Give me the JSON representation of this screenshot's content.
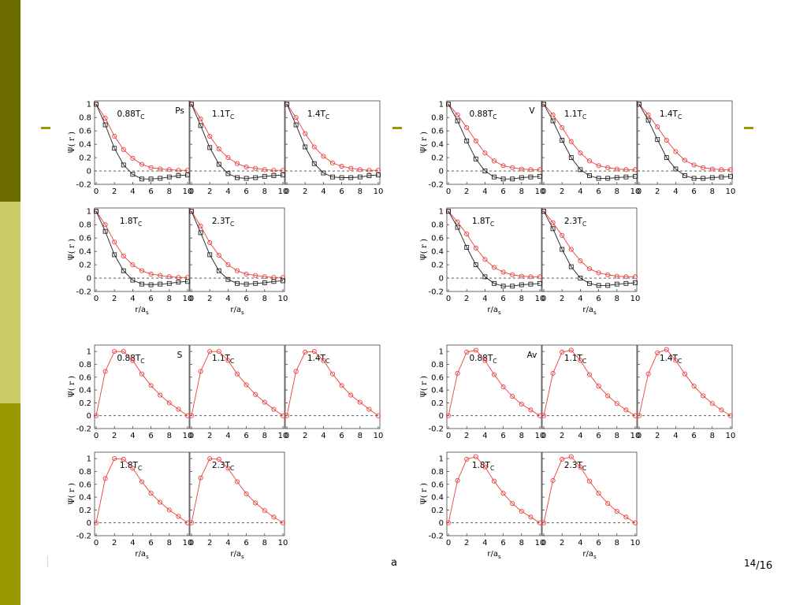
{
  "slide": {
    "colors": {
      "band": [
        "#6b6b00",
        "#cccc66",
        "#999900"
      ],
      "accent": "#999900",
      "red": "#e8413c",
      "black": "#222222"
    },
    "footer_fragment": "a",
    "page_current": "14",
    "page_total": "/16"
  },
  "chart_data": [
    {
      "type": "line",
      "title": "",
      "group": "top-left",
      "channel": "Ps",
      "xlabel": "r/a",
      "xlabel_sub": "s",
      "ylabel": "Ψ( r )",
      "xlim": [
        0,
        10
      ],
      "ylim": [
        -0.2,
        1.05
      ],
      "yticks": [
        -0.2,
        0,
        0.2,
        0.4,
        0.6,
        0.8,
        1
      ],
      "xticks": [
        0,
        2,
        4,
        6,
        8,
        10
      ],
      "dashed_zero": true,
      "panels": [
        {
          "label": "0.88T",
          "sub": "C",
          "x": [
            0,
            1,
            2,
            3,
            4,
            5,
            6,
            7,
            8,
            9,
            10
          ],
          "series": [
            {
              "color": "#e8413c",
              "marker": "circle",
              "values": [
                1.0,
                0.79,
                0.52,
                0.32,
                0.19,
                0.1,
                0.05,
                0.03,
                0.02,
                0.01,
                0.01
              ]
            },
            {
              "color": "#222222",
              "marker": "square",
              "values": [
                1.0,
                0.69,
                0.34,
                0.09,
                -0.05,
                -0.12,
                -0.12,
                -0.11,
                -0.09,
                -0.07,
                -0.06
              ]
            }
          ]
        },
        {
          "label": "1.1T",
          "sub": "C",
          "x": [
            0,
            1,
            2,
            3,
            4,
            5,
            6,
            7,
            8,
            9,
            10
          ],
          "series": [
            {
              "color": "#e8413c",
              "marker": "circle",
              "values": [
                1.0,
                0.78,
                0.52,
                0.33,
                0.2,
                0.11,
                0.06,
                0.04,
                0.02,
                0.01,
                0.01
              ]
            },
            {
              "color": "#222222",
              "marker": "square",
              "values": [
                1.0,
                0.68,
                0.35,
                0.1,
                -0.04,
                -0.1,
                -0.11,
                -0.1,
                -0.08,
                -0.07,
                -0.06
              ]
            }
          ]
        },
        {
          "label": "1.4T",
          "sub": "C",
          "x": [
            0,
            1,
            2,
            3,
            4,
            5,
            6,
            7,
            8,
            9,
            10
          ],
          "series": [
            {
              "color": "#e8413c",
              "marker": "circle",
              "values": [
                1.0,
                0.8,
                0.56,
                0.36,
                0.22,
                0.12,
                0.07,
                0.04,
                0.02,
                0.01,
                0.01
              ]
            },
            {
              "color": "#222222",
              "marker": "square",
              "values": [
                1.0,
                0.69,
                0.36,
                0.11,
                -0.03,
                -0.09,
                -0.1,
                -0.1,
                -0.09,
                -0.07,
                -0.06
              ]
            }
          ]
        },
        {
          "label": "1.8T",
          "sub": "C",
          "x": [
            0,
            1,
            2,
            3,
            4,
            5,
            6,
            7,
            8,
            9,
            10
          ],
          "series": [
            {
              "color": "#e8413c",
              "marker": "circle",
              "values": [
                1.0,
                0.8,
                0.54,
                0.33,
                0.2,
                0.11,
                0.06,
                0.04,
                0.02,
                0.01,
                0.01
              ]
            },
            {
              "color": "#222222",
              "marker": "square",
              "values": [
                1.0,
                0.7,
                0.35,
                0.11,
                -0.03,
                -0.09,
                -0.1,
                -0.09,
                -0.08,
                -0.06,
                -0.05
              ]
            }
          ]
        },
        {
          "label": "2.3T",
          "sub": "C",
          "x": [
            0,
            1,
            2,
            3,
            4,
            5,
            6,
            7,
            8,
            9,
            10
          ],
          "series": [
            {
              "color": "#e8413c",
              "marker": "circle",
              "values": [
                1.0,
                0.78,
                0.53,
                0.34,
                0.2,
                0.11,
                0.06,
                0.04,
                0.02,
                0.01,
                0.01
              ]
            },
            {
              "color": "#222222",
              "marker": "square",
              "values": [
                1.0,
                0.68,
                0.35,
                0.11,
                -0.02,
                -0.08,
                -0.09,
                -0.08,
                -0.07,
                -0.05,
                -0.04
              ]
            }
          ]
        }
      ]
    },
    {
      "type": "line",
      "title": "",
      "group": "top-right",
      "channel": "V",
      "xlabel": "r/a",
      "xlabel_sub": "s",
      "ylabel": "Ψ( r )",
      "xlim": [
        0,
        10
      ],
      "ylim": [
        -0.2,
        1.05
      ],
      "yticks": [
        -0.2,
        0,
        0.2,
        0.4,
        0.6,
        0.8,
        1
      ],
      "xticks": [
        0,
        2,
        4,
        6,
        8,
        10
      ],
      "dashed_zero": true,
      "panels": [
        {
          "label": "0.88T",
          "sub": "C",
          "x": [
            0,
            1,
            2,
            3,
            4,
            5,
            6,
            7,
            8,
            9,
            10
          ],
          "series": [
            {
              "color": "#e8413c",
              "marker": "circle",
              "values": [
                1.0,
                0.84,
                0.65,
                0.45,
                0.27,
                0.15,
                0.08,
                0.05,
                0.03,
                0.02,
                0.02
              ]
            },
            {
              "color": "#222222",
              "marker": "square",
              "values": [
                1.0,
                0.75,
                0.45,
                0.18,
                0.0,
                -0.09,
                -0.12,
                -0.12,
                -0.1,
                -0.09,
                -0.08
              ]
            }
          ]
        },
        {
          "label": "1.1T",
          "sub": "C",
          "x": [
            0,
            1,
            2,
            3,
            4,
            5,
            6,
            7,
            8,
            9,
            10
          ],
          "series": [
            {
              "color": "#e8413c",
              "marker": "circle",
              "values": [
                1.0,
                0.84,
                0.65,
                0.44,
                0.27,
                0.15,
                0.08,
                0.05,
                0.03,
                0.02,
                0.02
              ]
            },
            {
              "color": "#222222",
              "marker": "square",
              "values": [
                1.0,
                0.75,
                0.46,
                0.2,
                0.02,
                -0.07,
                -0.11,
                -0.11,
                -0.1,
                -0.09,
                -0.08
              ]
            }
          ]
        },
        {
          "label": "1.4T",
          "sub": "C",
          "x": [
            0,
            1,
            2,
            3,
            4,
            5,
            6,
            7,
            8,
            9,
            10
          ],
          "series": [
            {
              "color": "#e8413c",
              "marker": "circle",
              "values": [
                1.0,
                0.84,
                0.66,
                0.46,
                0.29,
                0.16,
                0.09,
                0.05,
                0.03,
                0.02,
                0.02
              ]
            },
            {
              "color": "#222222",
              "marker": "square",
              "values": [
                1.0,
                0.76,
                0.47,
                0.2,
                0.03,
                -0.07,
                -0.11,
                -0.11,
                -0.1,
                -0.09,
                -0.08
              ]
            }
          ]
        },
        {
          "label": "1.8T",
          "sub": "C",
          "x": [
            0,
            1,
            2,
            3,
            4,
            5,
            6,
            7,
            8,
            9,
            10
          ],
          "series": [
            {
              "color": "#e8413c",
              "marker": "circle",
              "values": [
                1.0,
                0.84,
                0.66,
                0.45,
                0.28,
                0.16,
                0.09,
                0.05,
                0.03,
                0.02,
                0.02
              ]
            },
            {
              "color": "#222222",
              "marker": "square",
              "values": [
                1.0,
                0.76,
                0.46,
                0.2,
                0.02,
                -0.08,
                -0.12,
                -0.12,
                -0.1,
                -0.09,
                -0.08
              ]
            }
          ]
        },
        {
          "label": "2.3T",
          "sub": "C",
          "x": [
            0,
            1,
            2,
            3,
            4,
            5,
            6,
            7,
            8,
            9,
            10
          ],
          "series": [
            {
              "color": "#e8413c",
              "marker": "circle",
              "values": [
                1.0,
                0.83,
                0.64,
                0.43,
                0.26,
                0.14,
                0.08,
                0.05,
                0.03,
                0.02,
                0.02
              ]
            },
            {
              "color": "#222222",
              "marker": "square",
              "values": [
                1.0,
                0.74,
                0.43,
                0.17,
                0.0,
                -0.08,
                -0.11,
                -0.11,
                -0.09,
                -0.08,
                -0.07
              ]
            }
          ]
        }
      ]
    },
    {
      "type": "line",
      "title": "",
      "group": "bottom-left",
      "channel": "S",
      "xlabel": "r/a",
      "xlabel_sub": "s",
      "ylabel": "Ψ( r )",
      "xlim": [
        0,
        10
      ],
      "ylim": [
        -0.2,
        1.1
      ],
      "yticks": [
        -0.2,
        0,
        0.2,
        0.4,
        0.6,
        0.8,
        1
      ],
      "xticks": [
        0,
        2,
        4,
        6,
        8,
        10
      ],
      "dashed_zero": true,
      "panels": [
        {
          "label": "0.88T",
          "sub": "C",
          "x": [
            0,
            1,
            2,
            3,
            4,
            5,
            6,
            7,
            8,
            9,
            10
          ],
          "series": [
            {
              "color": "#e8413c",
              "marker": "circle",
              "values": [
                0.0,
                0.69,
                1.0,
                1.0,
                0.86,
                0.65,
                0.47,
                0.32,
                0.2,
                0.1,
                0.0
              ]
            }
          ]
        },
        {
          "label": "1.1T",
          "sub": "C",
          "x": [
            0,
            1,
            2,
            3,
            4,
            5,
            6,
            7,
            8,
            9,
            10
          ],
          "series": [
            {
              "color": "#e8413c",
              "marker": "circle",
              "values": [
                0.0,
                0.69,
                1.0,
                1.0,
                0.86,
                0.65,
                0.48,
                0.33,
                0.21,
                0.1,
                0.0
              ]
            }
          ]
        },
        {
          "label": "1.4T",
          "sub": "C",
          "x": [
            0,
            1,
            2,
            3,
            4,
            5,
            6,
            7,
            8,
            9,
            10
          ],
          "series": [
            {
              "color": "#e8413c",
              "marker": "circle",
              "values": [
                0.0,
                0.69,
                0.99,
                1.0,
                0.86,
                0.65,
                0.47,
                0.32,
                0.21,
                0.1,
                0.0
              ]
            }
          ]
        },
        {
          "label": "1.8T",
          "sub": "C",
          "x": [
            0,
            1,
            2,
            3,
            4,
            5,
            6,
            7,
            8,
            9,
            10
          ],
          "series": [
            {
              "color": "#e8413c",
              "marker": "circle",
              "values": [
                0.0,
                0.69,
                1.0,
                0.99,
                0.85,
                0.64,
                0.46,
                0.32,
                0.2,
                0.1,
                0.0
              ]
            }
          ]
        },
        {
          "label": "2.3T",
          "sub": "C",
          "x": [
            0,
            1,
            2,
            3,
            4,
            5,
            6,
            7,
            8,
            9,
            10
          ],
          "series": [
            {
              "color": "#e8413c",
              "marker": "circle",
              "values": [
                0.0,
                0.7,
                1.0,
                0.99,
                0.85,
                0.64,
                0.45,
                0.31,
                0.19,
                0.09,
                0.0
              ]
            }
          ]
        }
      ]
    },
    {
      "type": "line",
      "title": "",
      "group": "bottom-right",
      "channel": "Av",
      "xlabel": "r/a",
      "xlabel_sub": "s",
      "ylabel": "Ψ( r )",
      "xlim": [
        0,
        10
      ],
      "ylim": [
        -0.2,
        1.1
      ],
      "yticks": [
        -0.2,
        0,
        0.2,
        0.4,
        0.6,
        0.8,
        1
      ],
      "xticks": [
        0,
        2,
        4,
        6,
        8,
        10
      ],
      "dashed_zero": true,
      "panels": [
        {
          "label": "0.88T",
          "sub": "C",
          "x": [
            0,
            1,
            2,
            3,
            4,
            5,
            6,
            7,
            8,
            9,
            10
          ],
          "series": [
            {
              "color": "#e8413c",
              "marker": "circle",
              "values": [
                0.0,
                0.66,
                0.99,
                1.02,
                0.86,
                0.64,
                0.45,
                0.3,
                0.18,
                0.09,
                0.0
              ]
            }
          ]
        },
        {
          "label": "1.1T",
          "sub": "C",
          "x": [
            0,
            1,
            2,
            3,
            4,
            5,
            6,
            7,
            8,
            9,
            10
          ],
          "series": [
            {
              "color": "#e8413c",
              "marker": "circle",
              "values": [
                0.0,
                0.66,
                0.99,
                1.02,
                0.86,
                0.64,
                0.46,
                0.31,
                0.19,
                0.09,
                0.0
              ]
            }
          ]
        },
        {
          "label": "1.4T",
          "sub": "C",
          "x": [
            0,
            1,
            2,
            3,
            4,
            5,
            6,
            7,
            8,
            9,
            10
          ],
          "series": [
            {
              "color": "#e8413c",
              "marker": "circle",
              "values": [
                0.0,
                0.65,
                0.98,
                1.03,
                0.86,
                0.65,
                0.46,
                0.31,
                0.19,
                0.09,
                0.0
              ]
            }
          ]
        },
        {
          "label": "1.8T",
          "sub": "C",
          "x": [
            0,
            1,
            2,
            3,
            4,
            5,
            6,
            7,
            8,
            9,
            10
          ],
          "series": [
            {
              "color": "#e8413c",
              "marker": "circle",
              "values": [
                0.0,
                0.66,
                0.99,
                1.03,
                0.87,
                0.65,
                0.46,
                0.3,
                0.18,
                0.09,
                0.0
              ]
            }
          ]
        },
        {
          "label": "2.3T",
          "sub": "C",
          "x": [
            0,
            1,
            2,
            3,
            4,
            5,
            6,
            7,
            8,
            9,
            10
          ],
          "series": [
            {
              "color": "#e8413c",
              "marker": "circle",
              "values": [
                0.0,
                0.66,
                0.99,
                1.03,
                0.87,
                0.65,
                0.46,
                0.3,
                0.18,
                0.09,
                0.0
              ]
            }
          ]
        }
      ]
    }
  ]
}
